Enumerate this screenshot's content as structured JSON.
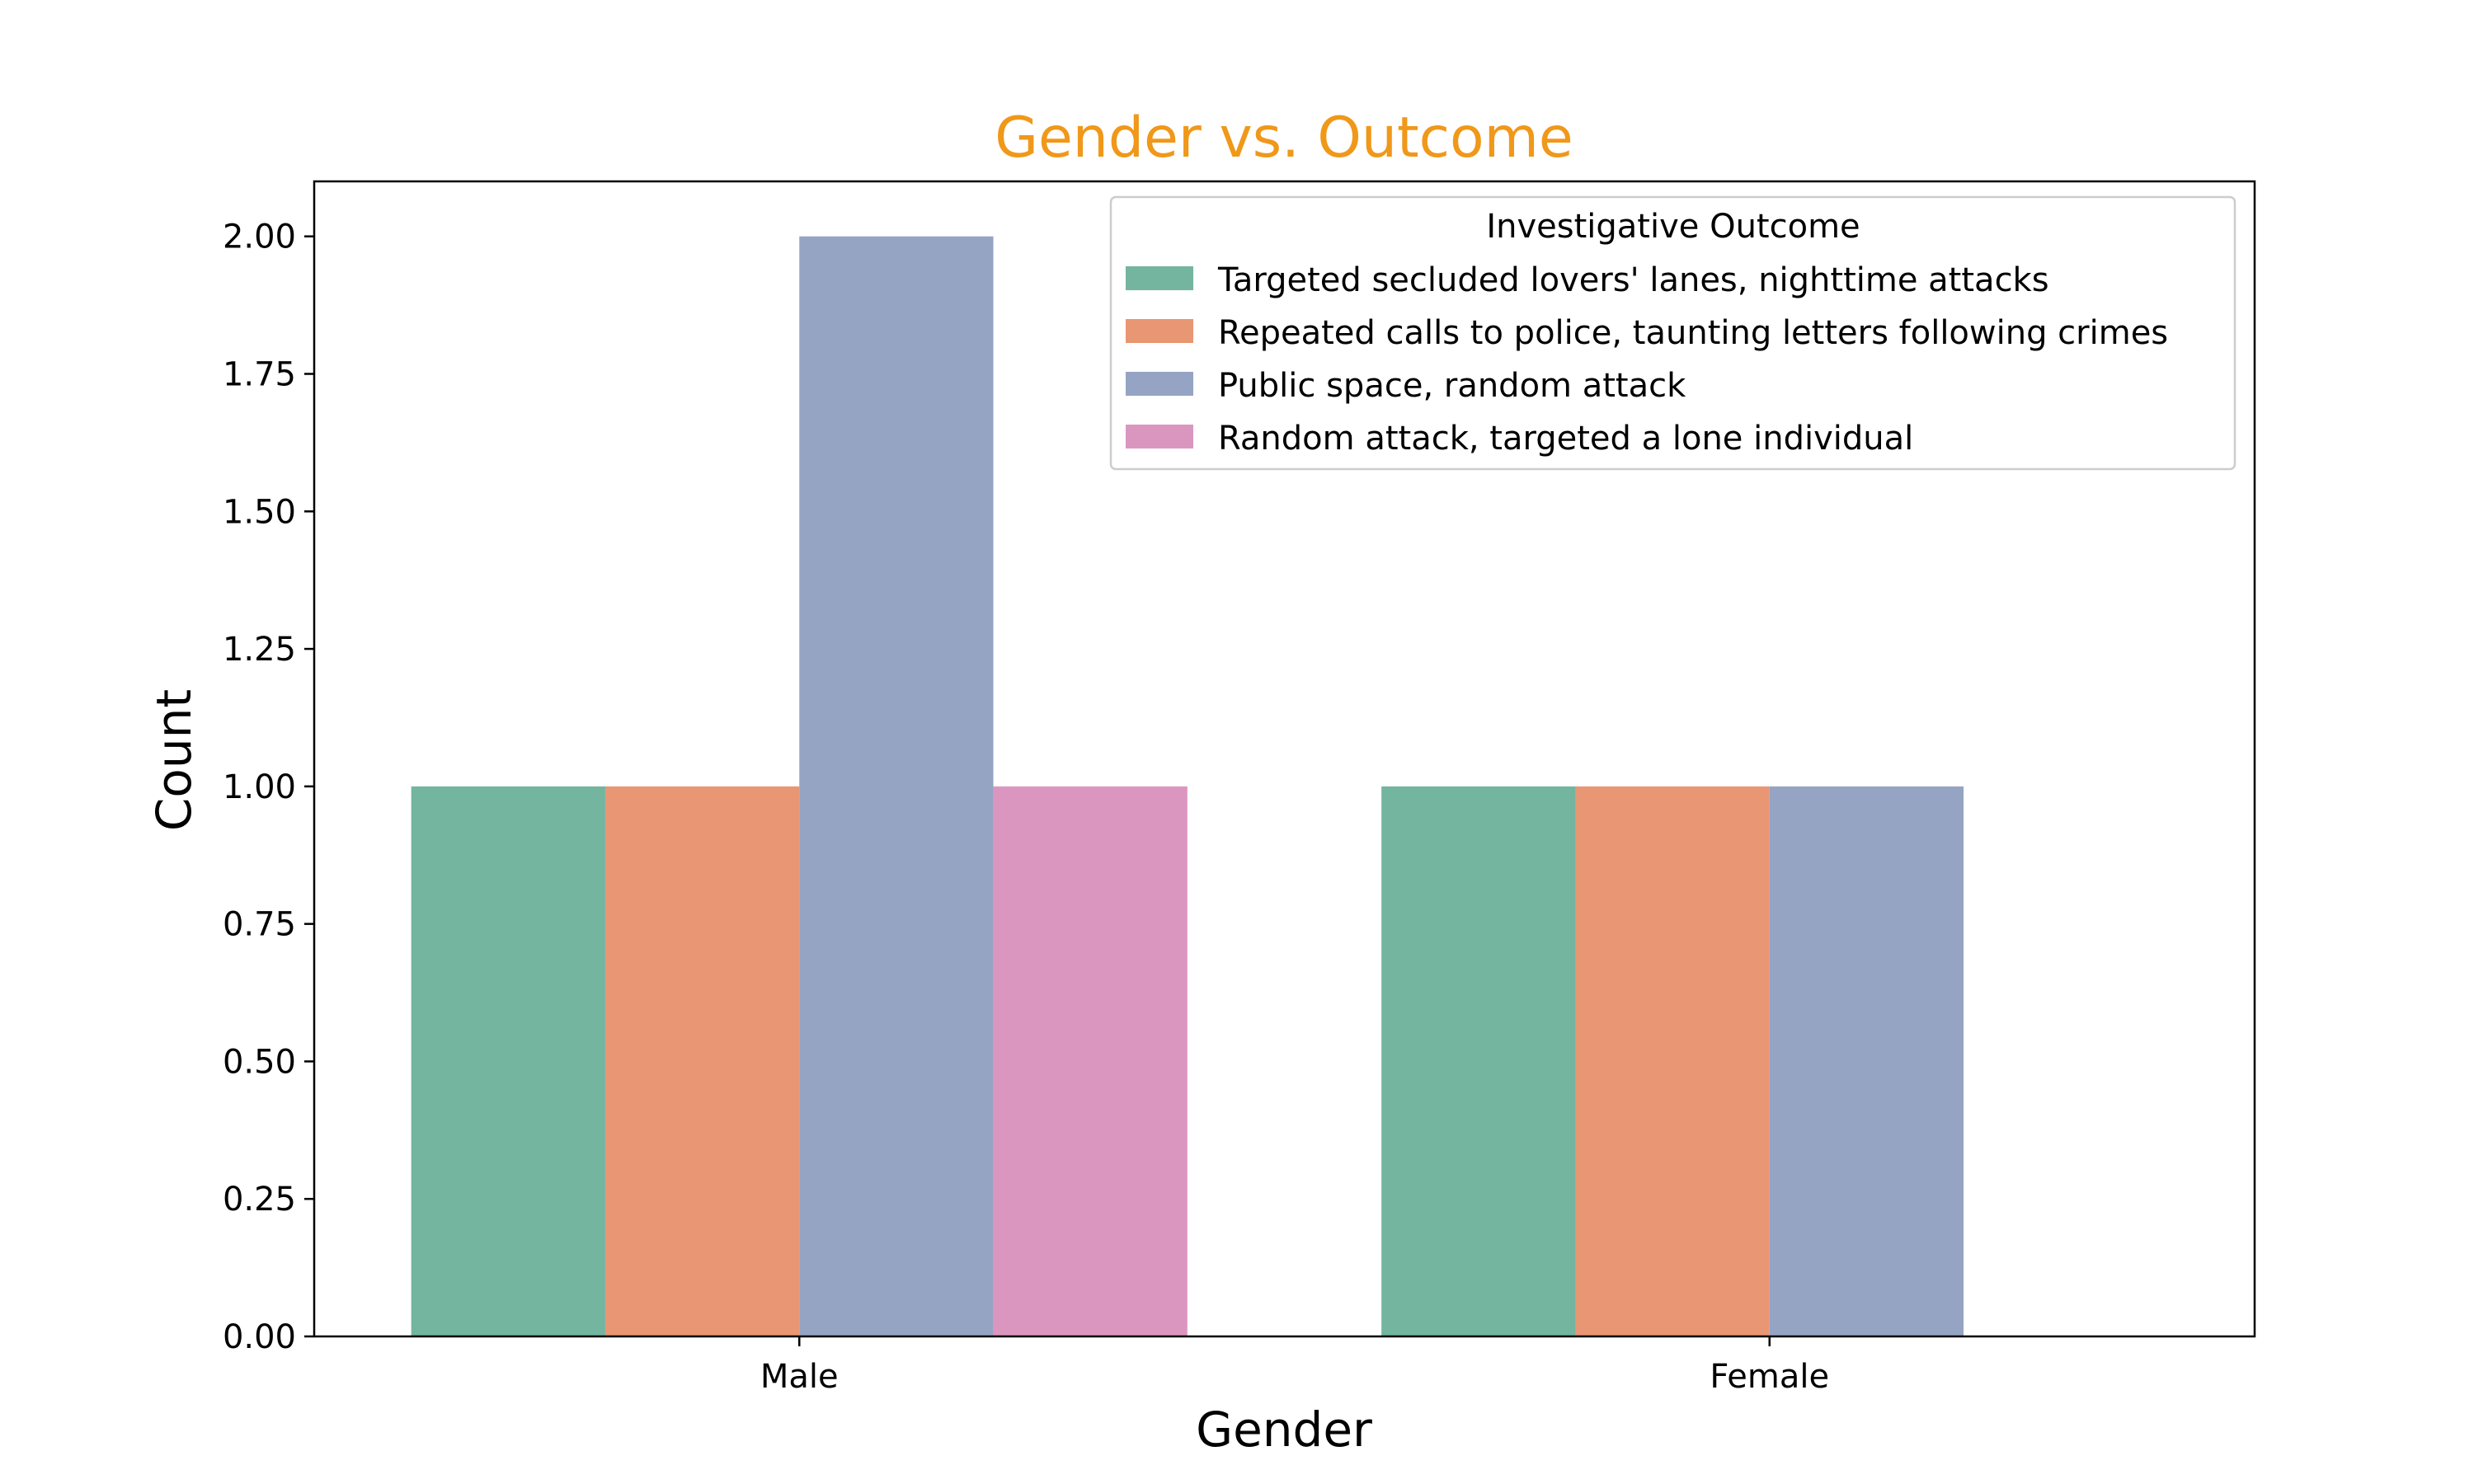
{
  "chart_data": {
    "type": "bar",
    "title": "Gender vs. Outcome",
    "xlabel": "Gender",
    "ylabel": "Count",
    "categories": [
      "Male",
      "Female"
    ],
    "ylim": [
      0,
      2.1
    ],
    "yticks": [
      "0.00",
      "0.25",
      "0.50",
      "0.75",
      "1.00",
      "1.25",
      "1.50",
      "1.75",
      "2.00"
    ],
    "legend": {
      "title": "Investigative Outcome",
      "placement": "top-right"
    },
    "grid": false,
    "series": [
      {
        "name": "Targeted secluded lovers' lanes, nighttime attacks",
        "color": "#73b59f",
        "values": [
          1,
          1
        ]
      },
      {
        "name": "Repeated calls to police, taunting letters following crimes",
        "color": "#e89673",
        "values": [
          1,
          1
        ]
      },
      {
        "name": "Public space, random attack",
        "color": "#95a4c3",
        "values": [
          2,
          1
        ]
      },
      {
        "name": "Random attack, targeted a lone individual",
        "color": "#db96c0",
        "values": [
          1,
          null
        ]
      }
    ]
  }
}
